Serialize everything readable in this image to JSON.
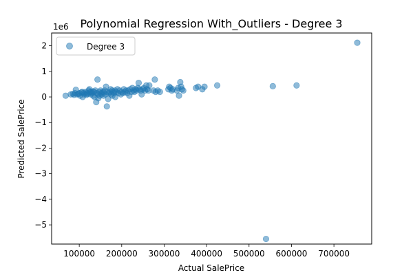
{
  "chart_data": {
    "type": "scatter",
    "title": "Polynomial Regression With_Outliers - Degree 3",
    "xlabel": "Actual SalePrice",
    "ylabel": "Predicted SalePrice",
    "y_scale_label": "1e6",
    "xlim": [
      34900,
      789000
    ],
    "ylim": [
      -5.75,
      2.5
    ],
    "y_unit": "millions (×1e6)",
    "x_ticks": [
      100000,
      200000,
      300000,
      400000,
      500000,
      600000,
      700000
    ],
    "x_tick_labels": [
      "100000",
      "200000",
      "300000",
      "400000",
      "500000",
      "600000",
      "700000"
    ],
    "y_ticks": [
      -5,
      -4,
      -3,
      -2,
      -1,
      0,
      1,
      2
    ],
    "y_tick_labels": [
      "−5",
      "−4",
      "−3",
      "−2",
      "−1",
      "0",
      "1",
      "2"
    ],
    "legend_position": "upper-left",
    "grid": false,
    "series": [
      {
        "name": "Degree 3",
        "color": "#1f77b4",
        "points": [
          [
            68000,
            0.05
          ],
          [
            80000,
            0.1
          ],
          [
            85000,
            0.12
          ],
          [
            88000,
            0.08
          ],
          [
            90000,
            0.15
          ],
          [
            92000,
            0.28
          ],
          [
            95000,
            0.1
          ],
          [
            98000,
            0.12
          ],
          [
            100000,
            0.15
          ],
          [
            102000,
            0.05
          ],
          [
            105000,
            0.18
          ],
          [
            107000,
            0.2
          ],
          [
            108000,
            0.0
          ],
          [
            110000,
            0.15
          ],
          [
            112000,
            0.1
          ],
          [
            115000,
            0.2
          ],
          [
            117000,
            0.08
          ],
          [
            118000,
            0.15
          ],
          [
            120000,
            0.12
          ],
          [
            122000,
            0.25
          ],
          [
            124000,
            0.3
          ],
          [
            125000,
            0.18
          ],
          [
            127000,
            0.1
          ],
          [
            128000,
            0.2
          ],
          [
            130000,
            0.15
          ],
          [
            132000,
            0.22
          ],
          [
            133000,
            0.05
          ],
          [
            135000,
            0.2
          ],
          [
            136000,
            0.0
          ],
          [
            138000,
            0.25
          ],
          [
            140000,
            -0.2
          ],
          [
            141000,
            0.15
          ],
          [
            143000,
            0.68
          ],
          [
            144000,
            0.1
          ],
          [
            145000,
            -0.05
          ],
          [
            147000,
            0.2
          ],
          [
            148000,
            0.05
          ],
          [
            150000,
            0.25
          ],
          [
            152000,
            0.15
          ],
          [
            153000,
            0.1
          ],
          [
            155000,
            0.2
          ],
          [
            157000,
            0.05
          ],
          [
            158000,
            0.18
          ],
          [
            160000,
            0.25
          ],
          [
            162000,
            0.1
          ],
          [
            163000,
            0.4
          ],
          [
            165000,
            -0.37
          ],
          [
            166000,
            0.2
          ],
          [
            168000,
            -0.08
          ],
          [
            170000,
            0.15
          ],
          [
            172000,
            0.2
          ],
          [
            174000,
            0.3
          ],
          [
            175000,
            0.1
          ],
          [
            177000,
            0.25
          ],
          [
            178000,
            0.05
          ],
          [
            180000,
            0.2
          ],
          [
            182000,
            0.15
          ],
          [
            184000,
            0.25
          ],
          [
            185000,
            0.0
          ],
          [
            187000,
            0.2
          ],
          [
            190000,
            0.3
          ],
          [
            192000,
            0.15
          ],
          [
            195000,
            0.25
          ],
          [
            198000,
            0.1
          ],
          [
            200000,
            0.2
          ],
          [
            203000,
            0.15
          ],
          [
            205000,
            0.3
          ],
          [
            208000,
            0.2
          ],
          [
            210000,
            0.25
          ],
          [
            213000,
            0.15
          ],
          [
            215000,
            0.25
          ],
          [
            218000,
            0.05
          ],
          [
            220000,
            0.3
          ],
          [
            223000,
            0.2
          ],
          [
            225000,
            0.35
          ],
          [
            228000,
            0.25
          ],
          [
            230000,
            0.2
          ],
          [
            233000,
            0.3
          ],
          [
            235000,
            0.25
          ],
          [
            238000,
            0.35
          ],
          [
            240000,
            0.55
          ],
          [
            242000,
            0.3
          ],
          [
            245000,
            0.25
          ],
          [
            247000,
            0.1
          ],
          [
            250000,
            0.3
          ],
          [
            252000,
            0.35
          ],
          [
            255000,
            0.25
          ],
          [
            258000,
            0.45
          ],
          [
            260000,
            0.3
          ],
          [
            263000,
            0.25
          ],
          [
            265000,
            0.45
          ],
          [
            275000,
            0.25
          ],
          [
            278000,
            0.68
          ],
          [
            280000,
            0.2
          ],
          [
            285000,
            0.25
          ],
          [
            290000,
            0.2
          ],
          [
            310000,
            0.3
          ],
          [
            312000,
            0.4
          ],
          [
            315000,
            0.35
          ],
          [
            318000,
            0.25
          ],
          [
            320000,
            0.3
          ],
          [
            330000,
            0.25
          ],
          [
            333000,
            0.35
          ],
          [
            335000,
            0.05
          ],
          [
            338000,
            0.58
          ],
          [
            340000,
            0.4
          ],
          [
            342000,
            0.3
          ],
          [
            345000,
            0.25
          ],
          [
            375000,
            0.35
          ],
          [
            380000,
            0.4
          ],
          [
            390000,
            0.3
          ],
          [
            395000,
            0.4
          ],
          [
            425000,
            0.45
          ],
          [
            540000,
            -5.55
          ],
          [
            556000,
            0.42
          ],
          [
            612000,
            0.45
          ],
          [
            755000,
            2.12
          ]
        ]
      }
    ]
  }
}
